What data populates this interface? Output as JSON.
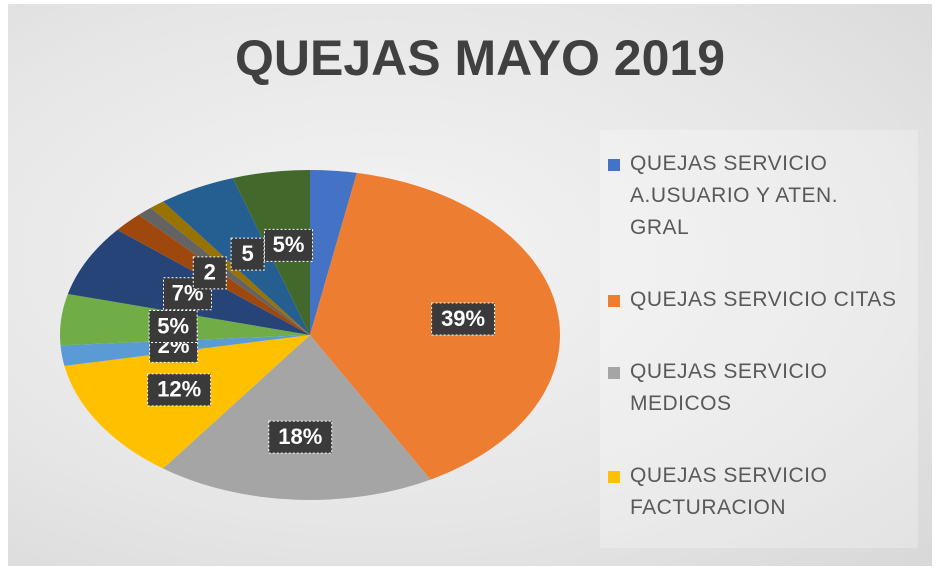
{
  "chart_data": {
    "type": "pie",
    "title": "QUEJAS MAYO 2019",
    "categories": [
      "QUEJAS SERVICIO A.USUARIO Y ATEN. GRAL",
      "QUEJAS SERVICIO CITAS",
      "QUEJAS SERVICIO MEDICOS",
      "QUEJAS SERVICIO FACTURACION",
      null,
      null,
      null,
      null,
      null,
      null,
      null,
      null
    ],
    "values": [
      3,
      39,
      18,
      12,
      2,
      5,
      7,
      2,
      1,
      1,
      5,
      5
    ],
    "value_labels": [
      null,
      "39%",
      "18%",
      "12%",
      "2%",
      "5%",
      "7%",
      "2",
      null,
      null,
      "5",
      "5%"
    ],
    "colors": [
      "#4472c4",
      "#ed7d31",
      "#a5a5a5",
      "#ffc000",
      "#5b9bd5",
      "#70ad47",
      "#264478",
      "#9e480e",
      "#636363",
      "#997300",
      "#255e91",
      "#43682b"
    ]
  }
}
